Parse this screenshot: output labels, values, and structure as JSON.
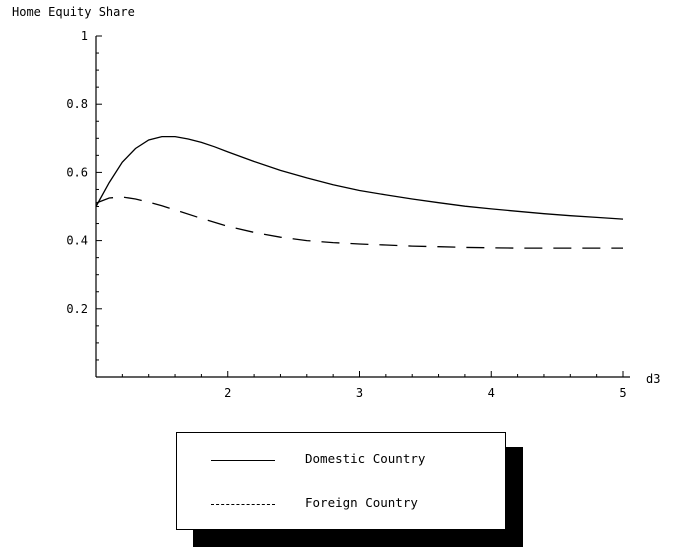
{
  "chart_data": {
    "type": "line",
    "title": "Home Equity Share",
    "xlabel": "d3",
    "ylabel": "",
    "xlim": [
      1,
      5
    ],
    "ylim": [
      0,
      1
    ],
    "x_ticks": [
      2,
      3,
      4,
      5
    ],
    "y_ticks": [
      0.2,
      0.4,
      0.6,
      0.8,
      1
    ],
    "x_tick_labels": [
      "2",
      "3",
      "4",
      "5"
    ],
    "y_tick_labels": [
      "0.2",
      "0.4",
      "0.6",
      "0.8",
      "1"
    ],
    "grid": false,
    "legend_position": "bottom",
    "series": [
      {
        "name": "Domestic Country",
        "style": "solid",
        "x": [
          1.0,
          1.1,
          1.2,
          1.3,
          1.4,
          1.5,
          1.6,
          1.7,
          1.8,
          1.9,
          2.0,
          2.2,
          2.4,
          2.6,
          2.8,
          3.0,
          3.2,
          3.4,
          3.6,
          3.8,
          4.0,
          4.2,
          4.4,
          4.6,
          4.8,
          5.0
        ],
        "y": [
          0.5,
          0.57,
          0.63,
          0.67,
          0.695,
          0.705,
          0.705,
          0.698,
          0.688,
          0.675,
          0.66,
          0.632,
          0.606,
          0.584,
          0.564,
          0.547,
          0.534,
          0.522,
          0.511,
          0.501,
          0.493,
          0.486,
          0.479,
          0.473,
          0.468,
          0.463
        ]
      },
      {
        "name": "Foreign Country",
        "style": "dashed",
        "x": [
          1.0,
          1.1,
          1.2,
          1.3,
          1.4,
          1.5,
          1.6,
          1.8,
          2.0,
          2.2,
          2.4,
          2.6,
          2.8,
          3.0,
          3.2,
          3.4,
          3.6,
          3.8,
          4.0,
          4.2,
          4.4,
          4.6,
          4.8,
          5.0
        ],
        "y": [
          0.51,
          0.525,
          0.528,
          0.522,
          0.513,
          0.502,
          0.49,
          0.465,
          0.442,
          0.424,
          0.41,
          0.4,
          0.394,
          0.39,
          0.387,
          0.384,
          0.382,
          0.38,
          0.379,
          0.378,
          0.378,
          0.378,
          0.378,
          0.378
        ]
      }
    ]
  }
}
